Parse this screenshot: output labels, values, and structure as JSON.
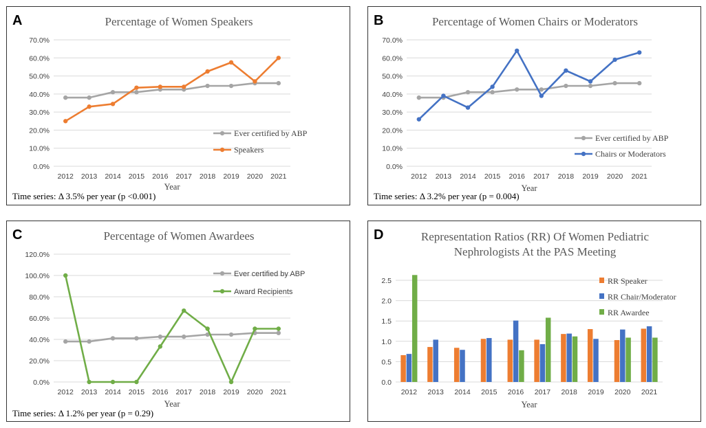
{
  "colors": {
    "abp": "#A5A5A5",
    "speakers": "#ED7D31",
    "chairs": "#4472C4",
    "awards": "#70AD47",
    "grid": "#D9D9D9"
  },
  "chart_data": [
    {
      "panel": "A",
      "type": "line",
      "title": "Percentage of Women Speakers",
      "xlabel": "Year",
      "ylabel": "",
      "categories": [
        "2012",
        "2013",
        "2014",
        "2015",
        "2016",
        "2017",
        "2018",
        "2019",
        "2020",
        "2021"
      ],
      "yticks": [
        "0.0%",
        "10.0%",
        "20.0%",
        "30.0%",
        "40.0%",
        "50.0%",
        "60.0%",
        "70.0%"
      ],
      "ylim": [
        0,
        70
      ],
      "series": [
        {
          "name": "Ever certified by ABP",
          "color": "#A5A5A5",
          "values": [
            38,
            38,
            41,
            41,
            42.5,
            42.5,
            44.5,
            44.5,
            46,
            46
          ]
        },
        {
          "name": "Speakers",
          "color": "#ED7D31",
          "values": [
            25,
            33,
            34.5,
            43.5,
            44,
            44,
            52.5,
            57.5,
            47,
            60
          ]
        }
      ],
      "legend_position": "right",
      "annotation": "Time series: Δ 3.5% per year (p <0.001)"
    },
    {
      "panel": "B",
      "type": "line",
      "title": "Percentage of Women Chairs or Moderators",
      "xlabel": "Year",
      "ylabel": "",
      "categories": [
        "2012",
        "2013",
        "2014",
        "2015",
        "2016",
        "2017",
        "2018",
        "2019",
        "2020",
        "2021"
      ],
      "yticks": [
        "0.0%",
        "10.0%",
        "20.0%",
        "30.0%",
        "40.0%",
        "50.0%",
        "60.0%",
        "70.0%"
      ],
      "ylim": [
        0,
        70
      ],
      "series": [
        {
          "name": "Ever certified by ABP",
          "color": "#A5A5A5",
          "values": [
            38,
            38,
            41,
            41,
            42.5,
            42.5,
            44.5,
            44.5,
            46,
            46
          ]
        },
        {
          "name": "Chairs or Moderators",
          "color": "#4472C4",
          "values": [
            26,
            39,
            32.5,
            44,
            64,
            39,
            53,
            47,
            59,
            63
          ]
        }
      ],
      "legend_position": "right",
      "annotation": "Time series: Δ 3.2% per year (p = 0.004)"
    },
    {
      "panel": "C",
      "type": "line",
      "title": "Percentage of Women Awardees",
      "xlabel": "Year",
      "ylabel": "",
      "categories": [
        "2012",
        "2013",
        "2014",
        "2015",
        "2016",
        "2017",
        "2018",
        "2019",
        "2020",
        "2021"
      ],
      "yticks": [
        "0.0%",
        "20.0%",
        "40.0%",
        "60.0%",
        "80.0%",
        "100.0%",
        "120.0%"
      ],
      "ylim": [
        0,
        120
      ],
      "series": [
        {
          "name": "Ever certified by ABP",
          "color": "#A5A5A5",
          "values": [
            38,
            38,
            41,
            41,
            42.5,
            42.5,
            44.5,
            44.5,
            46,
            46
          ]
        },
        {
          "name": "Award Recipients",
          "color": "#70AD47",
          "values": [
            100,
            0,
            0,
            0,
            33.3,
            67,
            50,
            0,
            50,
            50
          ]
        }
      ],
      "legend_position": "top-right",
      "annotation": "Time series: Δ 1.2% per year (p = 0.29)"
    },
    {
      "panel": "D",
      "type": "bar",
      "title": [
        "Representation Ratios (RR) Of Women Pediatric",
        "Nephrologists At the PAS Meeting"
      ],
      "xlabel": "Year",
      "ylabel": "",
      "categories": [
        "2012",
        "2013",
        "2014",
        "2015",
        "2016",
        "2017",
        "2018",
        "2019",
        "2020",
        "2021"
      ],
      "yticks": [
        "0.0",
        "0.5",
        "1.0",
        "1.5",
        "2.0",
        "2.5"
      ],
      "ylim": [
        0,
        2.5
      ],
      "series": [
        {
          "name": "RR Speaker",
          "color": "#ED7D31",
          "values": [
            0.66,
            0.86,
            0.84,
            1.06,
            1.04,
            1.04,
            1.18,
            1.3,
            1.03,
            1.31
          ]
        },
        {
          "name": "RR Chair/Moderator",
          "color": "#4472C4",
          "values": [
            0.69,
            1.04,
            0.79,
            1.08,
            1.51,
            0.93,
            1.19,
            1.06,
            1.29,
            1.37
          ]
        },
        {
          "name": "RR Awardee",
          "color": "#70AD47",
          "values": [
            2.63,
            0,
            0,
            0,
            0.78,
            1.58,
            1.12,
            0,
            1.09,
            1.09
          ]
        }
      ],
      "legend_position": "right"
    }
  ]
}
